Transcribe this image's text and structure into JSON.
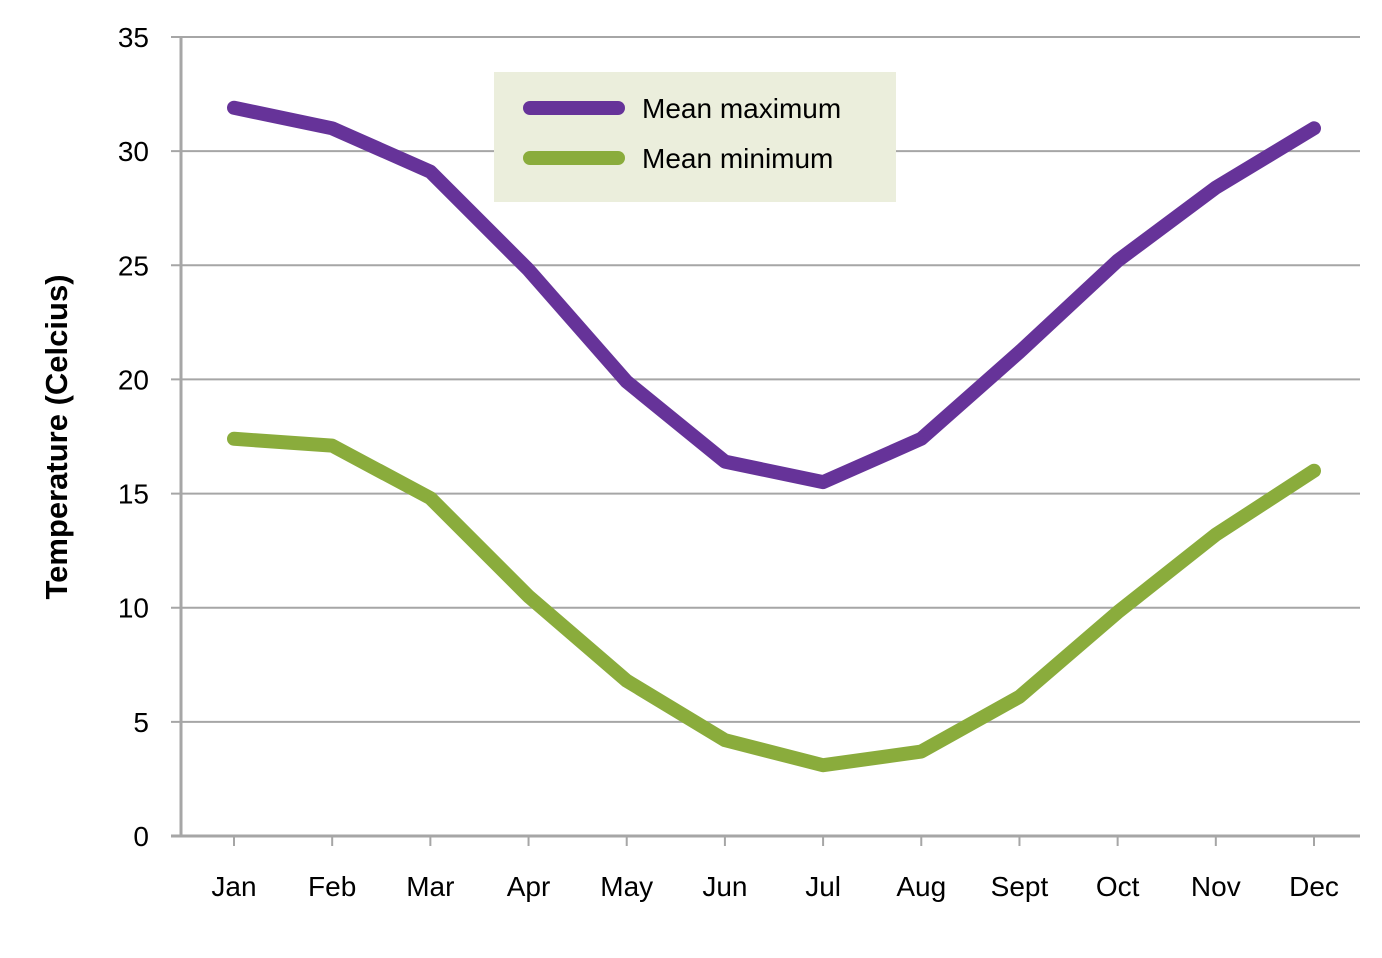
{
  "chart_data": {
    "type": "line",
    "title": "",
    "xlabel": "",
    "ylabel": "Temperature (Celcius)",
    "categories": [
      "Jan",
      "Feb",
      "Mar",
      "Apr",
      "May",
      "Jun",
      "Jul",
      "Aug",
      "Sept",
      "Oct",
      "Nov",
      "Dec"
    ],
    "series": [
      {
        "name": "Mean maximum",
        "color": "#663399",
        "values": [
          31.9,
          31.0,
          29.1,
          24.8,
          19.9,
          16.4,
          15.5,
          17.4,
          21.2,
          25.2,
          28.4,
          31.0
        ]
      },
      {
        "name": "Mean minimum",
        "color": "#8aac3c",
        "values": [
          17.4,
          17.1,
          14.8,
          10.5,
          6.8,
          4.2,
          3.1,
          3.7,
          6.1,
          9.8,
          13.2,
          16.0
        ]
      }
    ],
    "ylim": [
      0,
      35
    ],
    "yticks": [
      0,
      5,
      10,
      15,
      20,
      25,
      30,
      35
    ],
    "grid": true,
    "legend_position": "top-center",
    "legend_background": "#ebeedc",
    "grid_color": "#a6a6a6"
  }
}
